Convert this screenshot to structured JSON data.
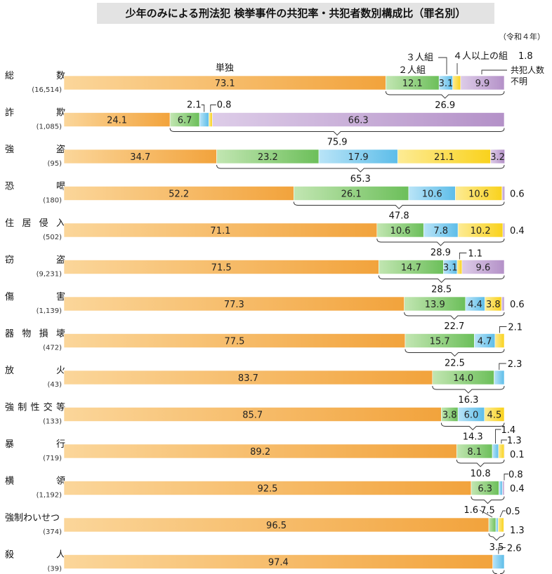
{
  "chart_data": {
    "type": "bar",
    "stacked": true,
    "orientation": "horizontal",
    "title": "少年のみによる刑法犯 検挙事件の共犯率・共犯者数別構成比（罪名別）",
    "note": "（令和４年）",
    "series_labels": {
      "single": "単独",
      "two": "２人組",
      "three": "３人組",
      "four_plus": "４人以上の組",
      "unknown": "共犯人数不明"
    },
    "series_colors": {
      "single": "#f2a33c",
      "two": "#6cbf5a",
      "three": "#5dbde9",
      "four_plus": "#f9d21c",
      "unknown": "#b491c8"
    },
    "categories": [
      {
        "name": "総数",
        "count": "(16,514)",
        "values": [
          73.1,
          12.1,
          3.1,
          1.8,
          9.9
        ],
        "labels": [
          "73.1",
          "12.1",
          "3.1",
          "",
          "9.9"
        ],
        "ext_labels": [
          "1.8"
        ],
        "complicity_rate": "26.9"
      },
      {
        "name": "詐欺",
        "count": "(1,085)",
        "values": [
          24.1,
          6.7,
          2.1,
          0.8,
          66.3
        ],
        "labels": [
          "24.1",
          "6.7",
          "",
          "",
          "66.3"
        ],
        "ext_labels": [
          "2.1",
          "0.8"
        ],
        "complicity_rate": "75.9"
      },
      {
        "name": "強盗",
        "count": "(95)",
        "values": [
          34.7,
          23.2,
          17.9,
          21.1,
          3.2
        ],
        "labels": [
          "34.7",
          "23.2",
          "17.9",
          "21.1",
          "3.2"
        ],
        "ext_labels": [],
        "complicity_rate": "65.3"
      },
      {
        "name": "恐喝",
        "count": "(180)",
        "values": [
          52.2,
          26.1,
          10.6,
          10.6,
          0.6
        ],
        "labels": [
          "52.2",
          "26.1",
          "10.6",
          "10.6",
          ""
        ],
        "ext_labels": [
          "0.6"
        ],
        "complicity_rate": "47.8"
      },
      {
        "name": "住居侵入",
        "count": "(502)",
        "values": [
          71.1,
          10.6,
          7.8,
          10.2,
          0.4
        ],
        "labels": [
          "71.1",
          "10.6",
          "7.8",
          "10.2",
          ""
        ],
        "ext_labels": [
          "0.4"
        ],
        "complicity_rate": "28.9"
      },
      {
        "name": "窃盗",
        "count": "(9,231)",
        "values": [
          71.5,
          14.7,
          3.1,
          1.1,
          9.6
        ],
        "labels": [
          "71.5",
          "14.7",
          "3.1",
          "",
          "9.6"
        ],
        "ext_labels": [
          "1.1"
        ],
        "complicity_rate": "28.5"
      },
      {
        "name": "傷害",
        "count": "(1,139)",
        "values": [
          77.3,
          13.9,
          4.4,
          3.8,
          0.6
        ],
        "labels": [
          "77.3",
          "13.9",
          "4.4",
          "3.8",
          ""
        ],
        "ext_labels": [
          "0.6"
        ],
        "complicity_rate": "22.7"
      },
      {
        "name": "器物損壊",
        "count": "(472)",
        "values": [
          77.5,
          15.7,
          4.7,
          2.1,
          0
        ],
        "labels": [
          "77.5",
          "15.7",
          "4.7",
          "",
          ""
        ],
        "ext_labels": [
          "2.1"
        ],
        "complicity_rate": "22.5"
      },
      {
        "name": "放火",
        "count": "(43)",
        "values": [
          83.7,
          14.0,
          2.3,
          0,
          0
        ],
        "labels": [
          "83.7",
          "14.0",
          "",
          "",
          ""
        ],
        "ext_labels": [
          "2.3"
        ],
        "complicity_rate": "16.3"
      },
      {
        "name": "強制性交等",
        "count": "(133)",
        "values": [
          85.7,
          3.8,
          6.0,
          4.5,
          0
        ],
        "labels": [
          "85.7",
          "3.8",
          "6.0",
          "4.5",
          ""
        ],
        "ext_labels": [],
        "complicity_rate": "14.3"
      },
      {
        "name": "暴行",
        "count": "(719)",
        "values": [
          89.2,
          8.1,
          1.4,
          1.3,
          0.1
        ],
        "labels": [
          "89.2",
          "8.1",
          "",
          "",
          ""
        ],
        "ext_labels": [
          "1.4",
          "1.3",
          "0.1"
        ],
        "complicity_rate": "10.8"
      },
      {
        "name": "横領",
        "count": "(1,192)",
        "values": [
          92.5,
          6.3,
          0.8,
          0,
          0.4
        ],
        "labels": [
          "92.5",
          "6.3",
          "",
          "",
          ""
        ],
        "ext_labels": [
          "0.8",
          "0.4"
        ],
        "complicity_rate": "7.5"
      },
      {
        "name": "強制わいせつ",
        "count": "(374)",
        "values": [
          96.5,
          1.6,
          0.5,
          1.3,
          0
        ],
        "labels": [
          "96.5",
          "",
          "",
          "",
          ""
        ],
        "ext_labels": [
          "1.6",
          "0.5",
          "1.3"
        ],
        "complicity_rate": "3.5"
      },
      {
        "name": "殺人",
        "count": "(39)",
        "values": [
          97.4,
          0,
          2.6,
          0,
          0
        ],
        "labels": [
          "97.4",
          "",
          "",
          "",
          ""
        ],
        "ext_labels": [
          "2.6"
        ],
        "complicity_rate": "2.6"
      }
    ],
    "xlim": [
      0,
      100
    ]
  }
}
